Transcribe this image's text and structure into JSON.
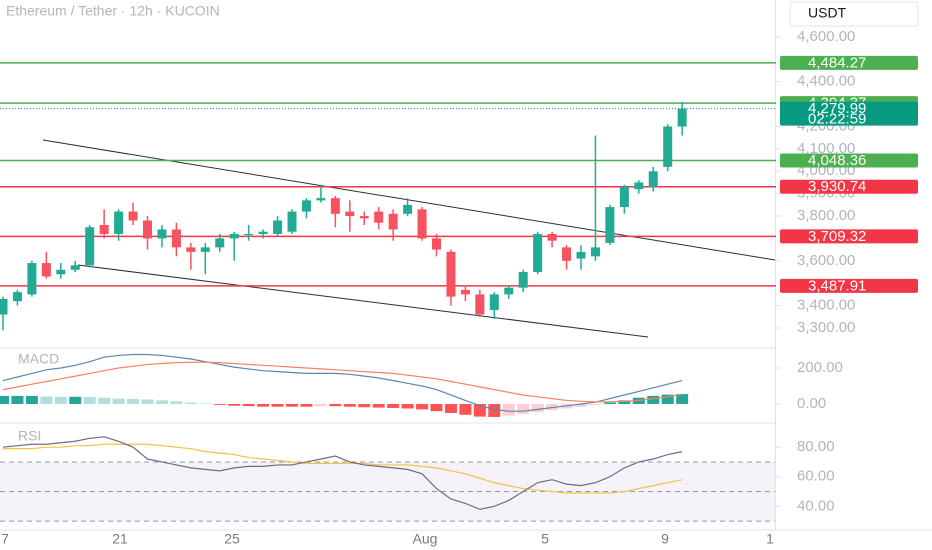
{
  "chart_data": {
    "type": "candlestick",
    "title": "Ethereum / Tether · 12h · KUCOIN",
    "currency": "USDT",
    "up_color": "#22ab94",
    "down_color": "#f7525f",
    "open": [
      3360,
      3420,
      3450,
      3590,
      3540,
      3560,
      3580,
      3760,
      3720,
      3820,
      3780,
      3700,
      3740,
      3660,
      3640,
      3660,
      3700,
      3715,
      3720,
      3720,
      3730,
      3820,
      3870,
      3880,
      3820,
      3800,
      3820,
      3810,
      3810,
      3830,
      3700,
      3640,
      3470,
      3450,
      3380,
      3450,
      3480,
      3550,
      3720,
      3660,
      3610,
      3620,
      3680,
      3840,
      3920,
      3930,
      4020,
      4200
    ],
    "high": [
      3440,
      3470,
      3600,
      3640,
      3590,
      3600,
      3760,
      3830,
      3830,
      3860,
      3800,
      3760,
      3770,
      3680,
      3680,
      3720,
      3730,
      3760,
      3740,
      3800,
      3830,
      3880,
      3940,
      3890,
      3870,
      3820,
      3840,
      3830,
      3880,
      3840,
      3720,
      3650,
      3490,
      3470,
      3460,
      3490,
      3560,
      3730,
      3730,
      3670,
      3670,
      4160,
      3850,
      3940,
      3960,
      4020,
      4210,
      4310
    ],
    "low": [
      3290,
      3400,
      3440,
      3520,
      3520,
      3550,
      3570,
      3700,
      3690,
      3760,
      3650,
      3660,
      3620,
      3560,
      3540,
      3640,
      3600,
      3690,
      3700,
      3710,
      3720,
      3790,
      3860,
      3750,
      3730,
      3760,
      3740,
      3690,
      3800,
      3690,
      3620,
      3400,
      3420,
      3350,
      3340,
      3430,
      3460,
      3540,
      3660,
      3560,
      3560,
      3600,
      3670,
      3810,
      3900,
      3910,
      4000,
      4160
    ],
    "close": [
      3430,
      3460,
      3590,
      3530,
      3560,
      3580,
      3750,
      3720,
      3820,
      3780,
      3700,
      3740,
      3660,
      3640,
      3660,
      3700,
      3720,
      3720,
      3730,
      3780,
      3820,
      3870,
      3880,
      3810,
      3800,
      3790,
      3770,
      3740,
      3850,
      3700,
      3650,
      3440,
      3450,
      3360,
      3450,
      3480,
      3550,
      3720,
      3690,
      3600,
      3640,
      3660,
      3840,
      3930,
      3950,
      4000,
      4200,
      4280
    ],
    "ylim": [
      3224,
      4765
    ],
    "yticks": [
      {
        "value": 4600,
        "label": "4,600.00"
      },
      {
        "value": 4400,
        "label": "4,400.00"
      },
      {
        "value": 4200,
        "label": "4,200.00"
      },
      {
        "value": 4100,
        "label": "4,100.00"
      },
      {
        "value": 4000,
        "label": "4,000.00"
      },
      {
        "value": 3900,
        "label": "3,900.00"
      },
      {
        "value": 3800,
        "label": "3,800.00"
      },
      {
        "value": 3600,
        "label": "3,600.00"
      },
      {
        "value": 3400,
        "label": "3,400.00"
      },
      {
        "value": 3300,
        "label": "3,300.00"
      }
    ],
    "levels": [
      {
        "value": 4484.27,
        "label": "4,484.27",
        "color": "#4caf50"
      },
      {
        "value": 4304.37,
        "label": "4,304.37",
        "color": "#4caf50"
      },
      {
        "value": 4048.36,
        "label": "4,048.36",
        "color": "#4caf50"
      },
      {
        "value": 3930.74,
        "label": "3,930.74",
        "color": "#f23645"
      },
      {
        "value": 3709.32,
        "label": "3,709.32",
        "color": "#f23645"
      },
      {
        "value": 3487.91,
        "label": "3,487.91",
        "color": "#f23645"
      }
    ],
    "current": {
      "value": 4279.99,
      "label": "4,279.99",
      "countdown": "02:22:59",
      "color": "#089981"
    },
    "x_labels": [
      "7",
      "21",
      "25",
      "Aug",
      "5",
      "9",
      "1"
    ],
    "macd": {
      "name": "MACD",
      "ylim": [
        -89,
        289
      ],
      "yticks": [
        {
          "value": 200,
          "label": "200.00"
        },
        {
          "value": 0,
          "label": "0.00"
        }
      ],
      "macd_color": "#5b86b0",
      "signal_color": "#f7825f",
      "macd": [
        130,
        150,
        170,
        190,
        200,
        215,
        235,
        260,
        270,
        275,
        275,
        270,
        260,
        250,
        235,
        220,
        205,
        195,
        185,
        180,
        175,
        170,
        170,
        170,
        165,
        155,
        145,
        130,
        115,
        100,
        80,
        50,
        20,
        -10,
        -30,
        -40,
        -40,
        -30,
        -20,
        -10,
        0,
        10,
        30,
        50,
        70,
        90,
        110,
        130
      ],
      "signal": [
        80,
        95,
        110,
        125,
        140,
        155,
        170,
        185,
        200,
        210,
        220,
        225,
        230,
        232,
        232,
        230,
        225,
        220,
        215,
        210,
        205,
        200,
        195,
        190,
        185,
        180,
        175,
        170,
        160,
        150,
        140,
        125,
        110,
        95,
        80,
        65,
        50,
        40,
        30,
        20,
        15,
        12,
        12,
        15,
        20,
        30,
        40,
        55
      ],
      "histogram": [
        45,
        45,
        45,
        42,
        40,
        40,
        38,
        35,
        30,
        28,
        25,
        20,
        15,
        8,
        3,
        -5,
        -10,
        -12,
        -15,
        -15,
        -15,
        -15,
        -12,
        -12,
        -15,
        -18,
        -20,
        -22,
        -25,
        -30,
        -40,
        -50,
        -60,
        -70,
        -72,
        -65,
        -55,
        -45,
        -35,
        -25,
        -15,
        -5,
        8,
        20,
        35,
        45,
        52,
        55
      ]
    },
    "rsi": {
      "name": "RSI",
      "ylim": [
        24,
        95
      ],
      "yticks": [
        {
          "value": 80,
          "label": "80.00"
        },
        {
          "value": 60,
          "label": "60.00"
        },
        {
          "value": 40,
          "label": "40.00"
        }
      ],
      "bands": [
        70,
        50,
        30
      ],
      "rsi_color": "#6e6a86",
      "ma_color": "#f5c242",
      "rsi": [
        80,
        81,
        82,
        82,
        83,
        84,
        86,
        87,
        84,
        80,
        72,
        70,
        68,
        66,
        65,
        64,
        66,
        67,
        67,
        68,
        68,
        70,
        72,
        74,
        70,
        68,
        67,
        66,
        65,
        62,
        52,
        45,
        42,
        38,
        40,
        44,
        50,
        56,
        58,
        55,
        54,
        56,
        60,
        66,
        70,
        72,
        75,
        77
      ],
      "ma": [
        79,
        79,
        79,
        80,
        80,
        81,
        81,
        82,
        82,
        82,
        82,
        81,
        80,
        79,
        77,
        76,
        75,
        73,
        72,
        71,
        70,
        69,
        69,
        69,
        69,
        69,
        68,
        68,
        68,
        67,
        66,
        64,
        62,
        59,
        56,
        54,
        52,
        51,
        50,
        49,
        49,
        49,
        49,
        50,
        52,
        54,
        56,
        58
      ]
    }
  }
}
